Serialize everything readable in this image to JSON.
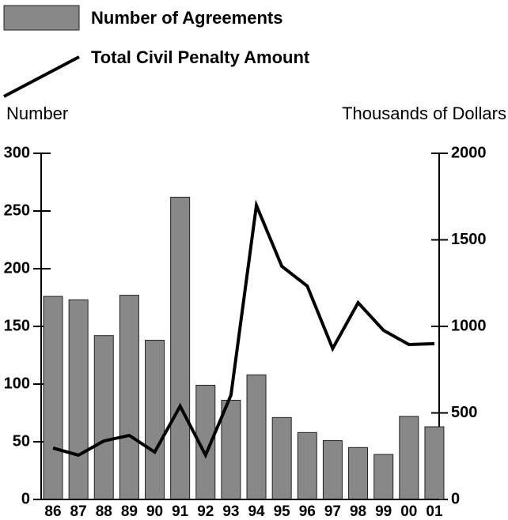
{
  "chart_data": {
    "type": "bar_line",
    "y_label": "Number",
    "y2_label": "Thousands of Dollars",
    "categories": [
      "86",
      "87",
      "88",
      "89",
      "90",
      "91",
      "92",
      "93",
      "94",
      "95",
      "96",
      "97",
      "98",
      "99",
      "00",
      "01"
    ],
    "series": [
      {
        "name": "Number of Agreements",
        "type": "bar",
        "color": "#888888",
        "values": [
          176,
          173,
          142,
          177,
          138,
          262,
          99,
          86,
          108,
          71,
          58,
          51,
          45,
          39,
          72,
          63
        ]
      },
      {
        "name": "Total Civil Penalty Amount",
        "type": "line",
        "color": "#000000",
        "axis": "y2",
        "values": [
          297,
          256,
          338,
          370,
          274,
          539,
          256,
          603,
          1699,
          1347,
          1233,
          872,
          1137,
          977,
          895,
          900
        ]
      }
    ],
    "ylim": [
      0,
      300
    ],
    "yticks": [
      0,
      50,
      100,
      150,
      200,
      250,
      300
    ],
    "y2lim": [
      0,
      2000
    ],
    "y2ticks": [
      0,
      500,
      1000,
      1500,
      2000
    ]
  }
}
